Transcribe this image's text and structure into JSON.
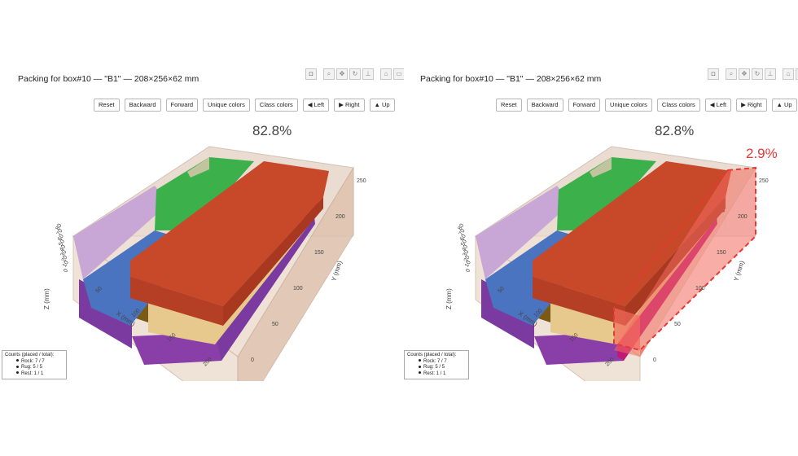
{
  "left": {
    "title": "Packing for box#10 — \"B1\" — 208×256×62 mm",
    "buttons": [
      "Reset",
      "Backward",
      "Forward",
      "Unique colors",
      "Class colors",
      "◀ Left",
      "▶ Right",
      "▲ Up"
    ],
    "fill_pct": "82.8%",
    "x_title": "X (mm)",
    "y_title": "Y (mm)",
    "z_title": "Z (mm)",
    "x_ticks": [
      "50",
      "100",
      "150",
      "200"
    ],
    "y_ticks": [
      "0",
      "50",
      "100",
      "150",
      "200",
      "250"
    ],
    "z_ticks": [
      "80",
      "70",
      "60",
      "50",
      "40",
      "30",
      "20",
      "10",
      "0"
    ],
    "legend": {
      "header": "Counts (placed / total):",
      "items": [
        "Rock: 7 / 7",
        "Rug: 5 / 5",
        "Rest: 1 / 1"
      ]
    }
  },
  "right": {
    "title": "Packing for box#10 — \"B1\" — 208×256×62 mm",
    "buttons": [
      "Reset",
      "Backward",
      "Forward",
      "Unique colors",
      "Class colors",
      "◀ Left",
      "▶ Right",
      "▲ Up"
    ],
    "fill_pct": "82.8%",
    "highlight_pct": "2.9%",
    "x_title": "X (mm)",
    "y_title": "Y (mm)",
    "z_title": "Z (mm)",
    "x_ticks": [
      "50",
      "100",
      "150",
      "200"
    ],
    "y_ticks": [
      "0",
      "50",
      "100",
      "150",
      "200",
      "250"
    ],
    "z_ticks": [
      "80",
      "70",
      "60",
      "50",
      "40",
      "30",
      "20",
      "10",
      "0"
    ],
    "legend": {
      "header": "Counts (placed / total):",
      "items": [
        "Rock: 7 / 7",
        "Rug: 5 / 5",
        "Rest: 1 / 1"
      ]
    }
  },
  "modebar_icons": [
    "camera-icon",
    "zoom-icon",
    "pan-icon",
    "orbit-icon",
    "turntable-icon",
    "home-icon",
    "reset-camera-icon"
  ],
  "colors": {
    "box_fill": "#e3c9b5",
    "red_block": "#c8482a",
    "green_block": "#3cb04a",
    "blue_block": "#4a73c0",
    "lilac_block": "#c8a6d6",
    "purple_block": "#7a3aa0",
    "tan_block": "#e7c98e",
    "brown_block": "#7a5a14",
    "magenta_block": "#c01a78",
    "highlight": "#f26b5e",
    "highlight_text": "#e53935"
  }
}
